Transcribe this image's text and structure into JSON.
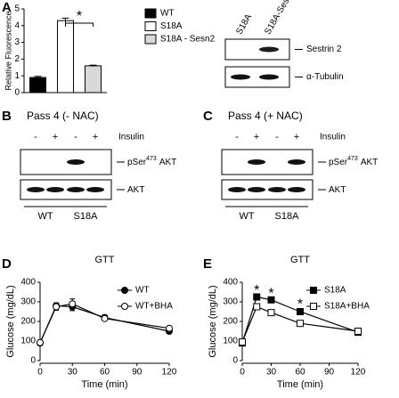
{
  "chart_data": [
    {
      "type": "bar",
      "label": "A",
      "ylabel": "Relative Fluorescence",
      "ylim": [
        0,
        5
      ],
      "yticks": [
        0,
        1,
        2,
        3,
        4,
        5
      ],
      "categories": [
        null
      ],
      "series": [
        {
          "name": "WT",
          "color": "#000000",
          "values": [
            0.9
          ],
          "errors": [
            0.07
          ]
        },
        {
          "name": "S18A",
          "color": "#ffffff",
          "values": [
            4.3
          ],
          "errors": [
            0.15
          ]
        },
        {
          "name": "S18A - Sesn2",
          "color": "#d9d9d9",
          "values": [
            1.6
          ],
          "errors": [
            0.04
          ]
        }
      ],
      "annotations": [
        {
          "text": "*"
        }
      ]
    },
    {
      "type": "line",
      "label": "D",
      "title": "GTT",
      "xlabel": "Time (min)",
      "ylabel": "Glucose (mg/dL)",
      "xlim": [
        0,
        120
      ],
      "xticks": [
        0,
        30,
        60,
        90,
        120
      ],
      "ylim": [
        0,
        400
      ],
      "yticks": [
        0,
        100,
        200,
        300,
        400
      ],
      "legend": "upper right",
      "x": [
        0,
        15,
        30,
        60,
        120
      ],
      "series": [
        {
          "name": "WT",
          "color": "#000000",
          "marker": "circle",
          "marker_fill": "#000000",
          "values": [
            90,
            280,
            275,
            220,
            150
          ],
          "errors": [
            12,
            15,
            20,
            12,
            10
          ]
        },
        {
          "name": "WT+BHA",
          "color": "#000000",
          "marker": "circle",
          "marker_fill": "#ffffff",
          "values": [
            92,
            275,
            290,
            215,
            165
          ],
          "errors": [
            10,
            18,
            25,
            10,
            10
          ]
        }
      ],
      "annotations": []
    },
    {
      "type": "line",
      "label": "E",
      "title": "GTT",
      "xlabel": "Time (min)",
      "ylabel": "Glucose (mg/dL)",
      "xlim": [
        0,
        120
      ],
      "xticks": [
        0,
        30,
        60,
        90,
        120
      ],
      "ylim": [
        0,
        400
      ],
      "yticks": [
        0,
        100,
        200,
        300,
        400
      ],
      "legend": "upper right",
      "x": [
        0,
        15,
        30,
        60,
        120
      ],
      "series": [
        {
          "name": "S18A",
          "color": "#000000",
          "marker": "square",
          "marker_fill": "#000000",
          "values": [
            90,
            325,
            310,
            250,
            145
          ],
          "errors": [
            15,
            10,
            10,
            15,
            15
          ]
        },
        {
          "name": "S18A+BHA",
          "color": "#000000",
          "marker": "square",
          "marker_fill": "#ffffff",
          "values": [
            95,
            275,
            245,
            190,
            150
          ],
          "errors": [
            10,
            15,
            10,
            10,
            15
          ]
        }
      ],
      "annotations": [
        {
          "text": "*",
          "x": 15,
          "y": 355
        },
        {
          "text": "*",
          "x": 30,
          "y": 340
        },
        {
          "text": "*",
          "x": 60,
          "y": 285
        }
      ]
    }
  ],
  "blot_a": {
    "columns": [
      "S18A",
      "S18A-Sesn2"
    ],
    "rows": [
      "Sestrin 2",
      "α-Tubulin"
    ]
  },
  "blots": [
    {
      "label": "B",
      "title": "Pass 4 (- NAC)",
      "treatment": "Insulin",
      "signs": [
        "-",
        "+",
        "-",
        "+"
      ],
      "rows": [
        {
          "main": "pSer",
          "sup": "473",
          "rest": "AKT"
        },
        {
          "main": "AKT"
        }
      ],
      "groups": [
        "WT",
        "S18A"
      ]
    },
    {
      "label": "C",
      "title": "Pass 4 (+ NAC)",
      "treatment": "Insulin",
      "signs": [
        "-",
        "+",
        "-",
        "+"
      ],
      "rows": [
        {
          "main": "pSer",
          "sup": "473",
          "rest": "AKT"
        },
        {
          "main": "AKT"
        }
      ],
      "groups": [
        "WT",
        "S18A"
      ]
    }
  ]
}
